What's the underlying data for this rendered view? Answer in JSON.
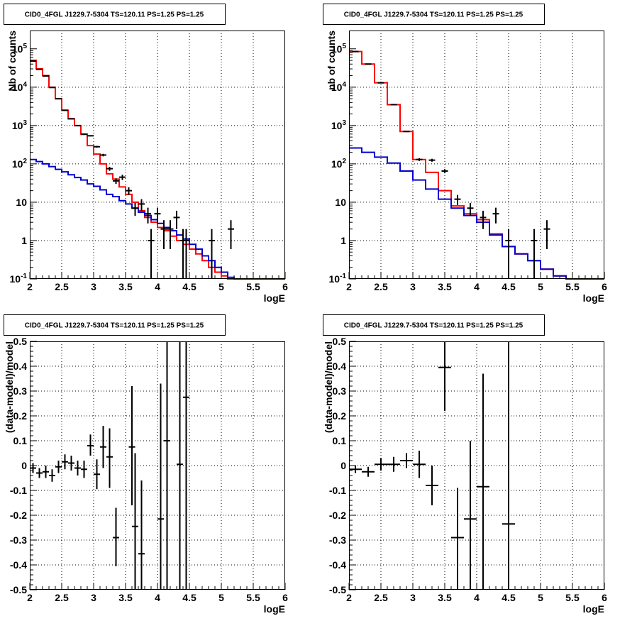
{
  "colors": {
    "data": "#000000",
    "total_model": "#ff0000",
    "component_model": "#0000cc",
    "grid": "#000000",
    "frame": "#000000"
  },
  "chart_data": [
    {
      "id": "counts-left",
      "type": "step",
      "title": "CID0_4FGL J1229.7-5304 TS=120.11 PS=1.25 PS=1.25",
      "xlabel": "logE",
      "ylabel": "Nb of counts",
      "xlim": [
        2,
        6
      ],
      "ylim": [
        0.1,
        300000
      ],
      "yscale": "log",
      "grid": true,
      "xticks": [
        "2",
        "2.5",
        "3",
        "3.5",
        "4",
        "4.5",
        "5",
        "5.5",
        "6"
      ],
      "yticks": [
        {
          "base": "10",
          "exp": "-1",
          "value": 0.1
        },
        {
          "base": "1",
          "exp": "",
          "value": 1
        },
        {
          "base": "10",
          "exp": "",
          "value": 10
        },
        {
          "base": "10",
          "exp": "2",
          "value": 100
        },
        {
          "base": "10",
          "exp": "3",
          "value": 1000
        },
        {
          "base": "10",
          "exp": "4",
          "value": 10000
        },
        {
          "base": "10",
          "exp": "5",
          "value": 100000
        }
      ],
      "bin_edges": [
        2.0,
        2.1,
        2.2,
        2.3,
        2.4,
        2.5,
        2.6,
        2.7,
        2.8,
        2.9,
        3.0,
        3.1,
        3.2,
        3.3,
        3.4,
        3.5,
        3.6,
        3.7,
        3.8,
        3.9,
        4.0,
        4.1,
        4.2,
        4.3,
        4.4,
        4.5,
        4.6,
        4.7,
        4.8,
        4.9,
        5.0,
        5.1,
        5.2,
        5.3,
        5.4,
        5.5,
        5.6,
        5.7,
        5.8,
        5.9,
        6.0
      ],
      "series": [
        {
          "kind": "total",
          "values": [
            50000,
            30000,
            20000,
            10000,
            5000,
            2500,
            1500,
            1000,
            600,
            300,
            180,
            100,
            55,
            40,
            25,
            16,
            10,
            6,
            4,
            3,
            2.2,
            1.8,
            1.3,
            1.0,
            0.8,
            0.6,
            0.45,
            0.3,
            0.2,
            0.15,
            0.12,
            0.1,
            0.1,
            0.1,
            0.1,
            0.1,
            0.1,
            0.1,
            0.1,
            0.1
          ]
        },
        {
          "kind": "component",
          "values": [
            130,
            115,
            100,
            85,
            72,
            62,
            52,
            44,
            38,
            30,
            26,
            21,
            16,
            14,
            11,
            9,
            7,
            5.5,
            4.5,
            3.5,
            2.8,
            2.2,
            1.8,
            1.4,
            1.1,
            0.8,
            0.6,
            0.4,
            0.3,
            0.2,
            0.15,
            0.11,
            0.1,
            0.1,
            0.1,
            0.1,
            0.1,
            0.1,
            0.1,
            0.1
          ]
        }
      ],
      "points": [
        {
          "x": 2.05,
          "y": 48000,
          "lo": 47000,
          "hi": 49000
        },
        {
          "x": 2.15,
          "y": 29000,
          "lo": 28500,
          "hi": 29500
        },
        {
          "x": 2.25,
          "y": 19500,
          "lo": 19100,
          "hi": 19900
        },
        {
          "x": 2.35,
          "y": 9800,
          "lo": 9600,
          "hi": 10000
        },
        {
          "x": 2.45,
          "y": 5000,
          "lo": 4900,
          "hi": 5100
        },
        {
          "x": 2.55,
          "y": 2500,
          "lo": 2450,
          "hi": 2550
        },
        {
          "x": 2.65,
          "y": 1500,
          "lo": 1460,
          "hi": 1540
        },
        {
          "x": 2.75,
          "y": 990,
          "lo": 960,
          "hi": 1020
        },
        {
          "x": 2.85,
          "y": 590,
          "lo": 570,
          "hi": 610
        },
        {
          "x": 2.95,
          "y": 540,
          "lo": 520,
          "hi": 560
        },
        {
          "x": 3.05,
          "y": 280,
          "lo": 265,
          "hi": 295
        },
        {
          "x": 3.15,
          "y": 170,
          "lo": 157,
          "hi": 183
        },
        {
          "x": 3.25,
          "y": 75,
          "lo": 66,
          "hi": 84
        },
        {
          "x": 3.35,
          "y": 36,
          "lo": 30,
          "hi": 42
        },
        {
          "x": 3.45,
          "y": 45,
          "lo": 38,
          "hi": 52
        },
        {
          "x": 3.55,
          "y": 20,
          "lo": 15.5,
          "hi": 24.5
        },
        {
          "x": 3.65,
          "y": 7,
          "lo": 4.4,
          "hi": 9.6
        },
        {
          "x": 3.75,
          "y": 9,
          "lo": 6,
          "hi": 12
        },
        {
          "x": 3.85,
          "y": 5,
          "lo": 2.8,
          "hi": 7.2
        },
        {
          "x": 3.9,
          "y": 1,
          "lo": 0.1,
          "hi": 2
        },
        {
          "x": 4.0,
          "y": 5,
          "lo": 2.8,
          "hi": 7.2
        },
        {
          "x": 4.1,
          "y": 2,
          "lo": 0.6,
          "hi": 3.4
        },
        {
          "x": 4.2,
          "y": 2,
          "lo": 0.6,
          "hi": 3.4
        },
        {
          "x": 4.3,
          "y": 4,
          "lo": 2,
          "hi": 6
        },
        {
          "x": 4.4,
          "y": 1,
          "lo": 0.1,
          "hi": 2
        },
        {
          "x": 4.45,
          "y": 1,
          "lo": 0.1,
          "hi": 2
        },
        {
          "x": 4.85,
          "y": 1,
          "lo": 0.1,
          "hi": 2
        },
        {
          "x": 5.15,
          "y": 2,
          "lo": 0.6,
          "hi": 3.4
        }
      ]
    },
    {
      "id": "counts-right",
      "type": "step",
      "title": "CID0_4FGL J1229.7-5304 TS=120.11 PS=1.25 PS=1.25",
      "xlabel": "logE",
      "ylabel": "nb of counts",
      "xlim": [
        2,
        6
      ],
      "ylim": [
        0.1,
        300000
      ],
      "yscale": "log",
      "grid": true,
      "xticks": [
        "2",
        "2.5",
        "3",
        "3.5",
        "4",
        "4.5",
        "5",
        "5.5",
        "6"
      ],
      "yticks": [
        {
          "base": "10",
          "exp": "-1",
          "value": 0.1
        },
        {
          "base": "1",
          "exp": "",
          "value": 1
        },
        {
          "base": "10",
          "exp": "",
          "value": 10
        },
        {
          "base": "10",
          "exp": "2",
          "value": 100
        },
        {
          "base": "10",
          "exp": "3",
          "value": 1000
        },
        {
          "base": "10",
          "exp": "4",
          "value": 10000
        },
        {
          "base": "10",
          "exp": "5",
          "value": 100000
        }
      ],
      "bin_edges": [
        2.0,
        2.2,
        2.4,
        2.6,
        2.8,
        3.0,
        3.2,
        3.4,
        3.6,
        3.8,
        4.0,
        4.2,
        4.4,
        4.6,
        4.8,
        5.0,
        5.2,
        5.4,
        5.6,
        5.8,
        6.0
      ],
      "series": [
        {
          "kind": "total",
          "values": [
            85000,
            40000,
            13000,
            3500,
            700,
            130,
            60,
            20,
            8,
            5,
            3.5,
            1.5,
            0.7,
            0.45,
            0.3,
            0.18,
            0.12,
            0.1,
            0.1,
            0.1
          ]
        },
        {
          "kind": "component",
          "values": [
            260,
            200,
            150,
            105,
            65,
            38,
            22,
            12,
            7,
            4.5,
            3,
            1.4,
            0.7,
            0.45,
            0.3,
            0.18,
            0.12,
            0.1,
            0.1,
            0.1
          ]
        }
      ],
      "points": [
        {
          "x": 2.1,
          "y": 85000,
          "lo": 84000,
          "hi": 86000
        },
        {
          "x": 2.3,
          "y": 40000,
          "lo": 39400,
          "hi": 40600
        },
        {
          "x": 2.5,
          "y": 13000,
          "lo": 12800,
          "hi": 13200
        },
        {
          "x": 2.7,
          "y": 3500,
          "lo": 3440,
          "hi": 3560
        },
        {
          "x": 2.9,
          "y": 700,
          "lo": 675,
          "hi": 725
        },
        {
          "x": 3.1,
          "y": 130,
          "lo": 119,
          "hi": 141
        },
        {
          "x": 3.3,
          "y": 125,
          "lo": 114,
          "hi": 136
        },
        {
          "x": 3.5,
          "y": 65,
          "lo": 57,
          "hi": 73
        },
        {
          "x": 3.7,
          "y": 12,
          "lo": 8.5,
          "hi": 15.5
        },
        {
          "x": 3.9,
          "y": 7,
          "lo": 4.4,
          "hi": 9.6
        },
        {
          "x": 4.1,
          "y": 4,
          "lo": 2,
          "hi": 6
        },
        {
          "x": 4.3,
          "y": 5,
          "lo": 2.8,
          "hi": 7.2
        },
        {
          "x": 4.5,
          "y": 1,
          "lo": 0.1,
          "hi": 2
        },
        {
          "x": 4.9,
          "y": 1,
          "lo": 0.1,
          "hi": 2
        },
        {
          "x": 5.1,
          "y": 2,
          "lo": 0.6,
          "hi": 3.4
        }
      ]
    },
    {
      "id": "resid-left",
      "type": "scatter",
      "title": "CID0_4FGL J1229.7-5304 TS=120.11 PS=1.25 PS=1.25",
      "xlabel": "logE",
      "ylabel": "(data-model)/model",
      "xlim": [
        2,
        6
      ],
      "ylim": [
        -0.5,
        0.5
      ],
      "yscale": "linear",
      "grid": true,
      "xticks": [
        "2",
        "2.5",
        "3",
        "3.5",
        "4",
        "4.5",
        "5",
        "5.5",
        "6"
      ],
      "yticks": [
        {
          "base": "-0.5",
          "value": -0.5
        },
        {
          "base": "-0.4",
          "value": -0.4
        },
        {
          "base": "-0.3",
          "value": -0.3
        },
        {
          "base": "-0.2",
          "value": -0.2
        },
        {
          "base": "-0.1",
          "value": -0.1
        },
        {
          "base": "0",
          "value": 0
        },
        {
          "base": "0.1",
          "value": 0.1
        },
        {
          "base": "0.2",
          "value": 0.2
        },
        {
          "base": "0.3",
          "value": 0.3
        },
        {
          "base": "0.4",
          "value": 0.4
        },
        {
          "base": "0.5",
          "value": 0.5
        }
      ],
      "xerr": 0.05,
      "points": [
        {
          "x": 2.05,
          "y": -0.01,
          "lo": -0.03,
          "hi": 0.01
        },
        {
          "x": 2.15,
          "y": -0.03,
          "lo": -0.05,
          "hi": -0.01
        },
        {
          "x": 2.25,
          "y": -0.025,
          "lo": -0.05,
          "hi": 0.0
        },
        {
          "x": 2.35,
          "y": -0.04,
          "lo": -0.065,
          "hi": -0.015
        },
        {
          "x": 2.45,
          "y": -0.005,
          "lo": -0.03,
          "hi": 0.02
        },
        {
          "x": 2.55,
          "y": 0.015,
          "lo": -0.015,
          "hi": 0.045
        },
        {
          "x": 2.65,
          "y": 0.01,
          "lo": -0.02,
          "hi": 0.04
        },
        {
          "x": 2.75,
          "y": -0.01,
          "lo": -0.04,
          "hi": 0.02
        },
        {
          "x": 2.85,
          "y": -0.015,
          "lo": -0.05,
          "hi": 0.02
        },
        {
          "x": 2.95,
          "y": 0.08,
          "lo": 0.04,
          "hi": 0.125
        },
        {
          "x": 3.05,
          "y": -0.035,
          "lo": -0.095,
          "hi": 0.025
        },
        {
          "x": 3.15,
          "y": 0.075,
          "lo": -0.01,
          "hi": 0.16
        },
        {
          "x": 3.25,
          "y": 0.035,
          "lo": -0.09,
          "hi": 0.15
        },
        {
          "x": 3.35,
          "y": -0.29,
          "lo": -0.405,
          "hi": -0.17
        },
        {
          "x": 3.6,
          "y": 0.075,
          "lo": -0.16,
          "hi": 0.32
        },
        {
          "x": 3.65,
          "y": -0.245,
          "lo": -0.5,
          "hi": 0.05
        },
        {
          "x": 3.75,
          "y": -0.355,
          "lo": -0.5,
          "hi": -0.06
        },
        {
          "x": 4.05,
          "y": -0.215,
          "lo": -0.5,
          "hi": 0.33
        },
        {
          "x": 4.15,
          "y": 0.1,
          "lo": -0.5,
          "hi": 0.5
        },
        {
          "x": 4.35,
          "y": 0.005,
          "lo": -0.5,
          "hi": 0.5
        },
        {
          "x": 4.45,
          "y": 0.275,
          "lo": -0.5,
          "hi": 0.5
        }
      ]
    },
    {
      "id": "resid-right",
      "type": "scatter",
      "title": "CID0_4FGL J1229.7-5304 TS=120.11 PS=1.25 PS=1.25",
      "xlabel": "logE",
      "ylabel": "(data-model)/model",
      "xlim": [
        2,
        6
      ],
      "ylim": [
        -0.5,
        0.5
      ],
      "yscale": "linear",
      "grid": true,
      "xticks": [
        "2",
        "2.5",
        "3",
        "3.5",
        "4",
        "4.5",
        "5",
        "5.5",
        "6"
      ],
      "yticks": [
        {
          "base": "-0.5",
          "value": -0.5
        },
        {
          "base": "-0.4",
          "value": -0.4
        },
        {
          "base": "-0.3",
          "value": -0.3
        },
        {
          "base": "-0.2",
          "value": -0.2
        },
        {
          "base": "-0.1",
          "value": -0.1
        },
        {
          "base": "0",
          "value": 0
        },
        {
          "base": "0.1",
          "value": 0.1
        },
        {
          "base": "0.2",
          "value": 0.2
        },
        {
          "base": "0.3",
          "value": 0.3
        },
        {
          "base": "0.4",
          "value": 0.4
        },
        {
          "base": "0.5",
          "value": 0.5
        }
      ],
      "xerr": 0.1,
      "points": [
        {
          "x": 2.1,
          "y": -0.015,
          "lo": -0.03,
          "hi": 0.0
        },
        {
          "x": 2.3,
          "y": -0.025,
          "lo": -0.045,
          "hi": -0.005
        },
        {
          "x": 2.5,
          "y": 0.005,
          "lo": -0.02,
          "hi": 0.03
        },
        {
          "x": 2.7,
          "y": 0.005,
          "lo": -0.025,
          "hi": 0.035
        },
        {
          "x": 2.9,
          "y": 0.02,
          "lo": -0.01,
          "hi": 0.05
        },
        {
          "x": 3.1,
          "y": 0.005,
          "lo": -0.05,
          "hi": 0.06
        },
        {
          "x": 3.3,
          "y": -0.08,
          "lo": -0.16,
          "hi": 0.0
        },
        {
          "x": 3.5,
          "y": 0.395,
          "lo": 0.22,
          "hi": 0.5
        },
        {
          "x": 3.7,
          "y": -0.29,
          "lo": -0.5,
          "hi": -0.09
        },
        {
          "x": 3.9,
          "y": -0.215,
          "lo": -0.5,
          "hi": 0.1
        },
        {
          "x": 4.1,
          "y": -0.085,
          "lo": -0.5,
          "hi": 0.37
        },
        {
          "x": 4.5,
          "y": -0.235,
          "lo": -0.5,
          "hi": 0.5
        }
      ]
    }
  ]
}
